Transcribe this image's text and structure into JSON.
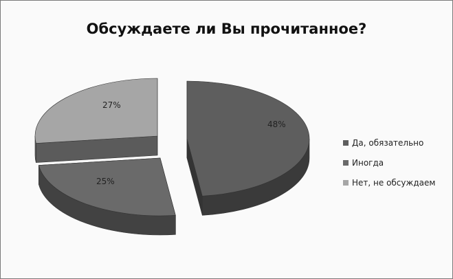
{
  "chart_data": {
    "type": "pie",
    "title": "Обсуждаете ли Вы прочитанное?",
    "slices": [
      {
        "label": "Да, обязательно",
        "value": 48,
        "display": "48%",
        "color": "#5e5e5e"
      },
      {
        "label": "Иногда",
        "value": 25,
        "display": "25%",
        "color": "#6a6a6a"
      },
      {
        "label": "Нет, не обсуждаем",
        "value": 27,
        "display": "27%",
        "color": "#a6a6a6"
      }
    ],
    "style": "3d-exploded",
    "legend_position": "right"
  }
}
